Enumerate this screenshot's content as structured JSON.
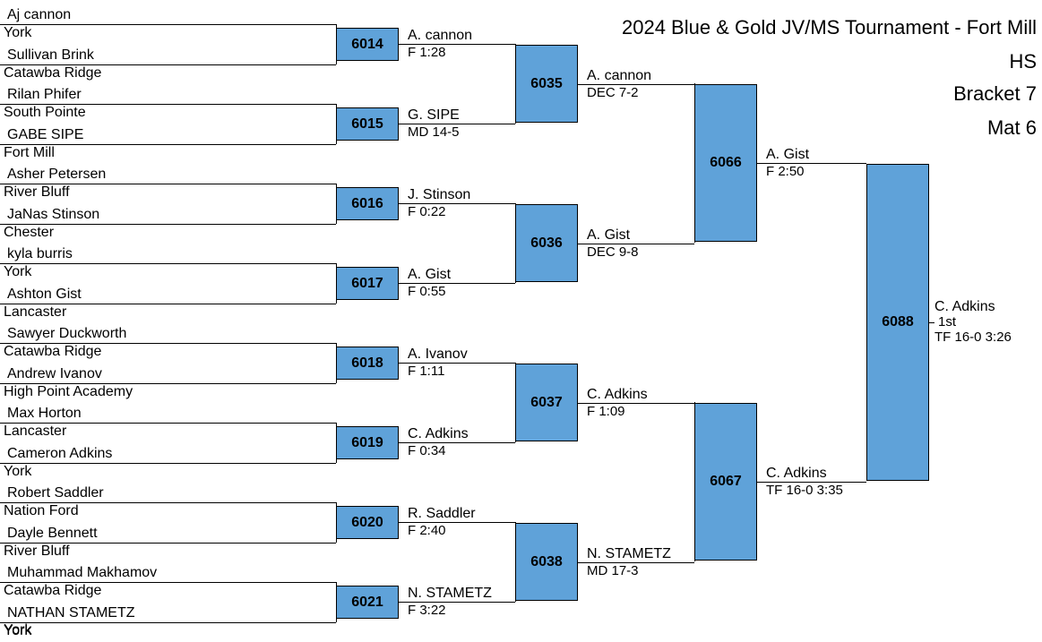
{
  "header": {
    "title_line1": "2024 Blue & Gold JV/MS Tournament - Fort Mill",
    "title_line2": "HS",
    "bracket": "Bracket 7",
    "mat": "Mat 6"
  },
  "wrestlers": [
    {
      "name": "Aj cannon",
      "team": "York"
    },
    {
      "name": "Sullivan Brink",
      "team": "Catawba Ridge"
    },
    {
      "name": "Rilan Phifer",
      "team": "South Pointe"
    },
    {
      "name": "GABE SIPE",
      "team": "Fort Mill"
    },
    {
      "name": "Asher Petersen",
      "team": "River Bluff"
    },
    {
      "name": "JaNas Stinson",
      "team": "Chester"
    },
    {
      "name": "kyla burris",
      "team": "York"
    },
    {
      "name": "Ashton Gist",
      "team": "Lancaster"
    },
    {
      "name": "Sawyer Duckworth",
      "team": "Catawba Ridge"
    },
    {
      "name": "Andrew Ivanov",
      "team": "High Point Academy"
    },
    {
      "name": "Max Horton",
      "team": "Lancaster"
    },
    {
      "name": "Cameron Adkins",
      "team": "York"
    },
    {
      "name": "Robert Saddler",
      "team": "Nation Ford"
    },
    {
      "name": "Dayle Bennett",
      "team": "River Bluff"
    },
    {
      "name": "Muhammad Makhamov",
      "team": "Catawba Ridge"
    },
    {
      "name": "NATHAN STAMETZ",
      "team": "York"
    }
  ],
  "round1": [
    {
      "bout": "6014",
      "winner": "A. cannon",
      "result": "F 1:28"
    },
    {
      "bout": "6015",
      "winner": "G. SIPE",
      "result": "MD 14-5"
    },
    {
      "bout": "6016",
      "winner": "J. Stinson",
      "result": "F 0:22"
    },
    {
      "bout": "6017",
      "winner": "A. Gist",
      "result": "F 0:55"
    },
    {
      "bout": "6018",
      "winner": "A. Ivanov",
      "result": "F 1:11"
    },
    {
      "bout": "6019",
      "winner": "C. Adkins",
      "result": "F 0:34"
    },
    {
      "bout": "6020",
      "winner": "R. Saddler",
      "result": "F 2:40"
    },
    {
      "bout": "6021",
      "winner": "N. STAMETZ",
      "result": "F 3:22"
    }
  ],
  "quarterfinals": [
    {
      "bout": "6035",
      "winner": "A. cannon",
      "result": "DEC 7-2"
    },
    {
      "bout": "6036",
      "winner": "A. Gist",
      "result": "DEC 9-8"
    },
    {
      "bout": "6037",
      "winner": "C. Adkins",
      "result": "F 1:09"
    },
    {
      "bout": "6038",
      "winner": "N. STAMETZ",
      "result": "MD 17-3"
    }
  ],
  "semifinals": [
    {
      "bout": "6066",
      "winner": "A. Gist",
      "result": "F 2:50"
    },
    {
      "bout": "6067",
      "winner": "C. Adkins",
      "result": "TF 16-0 3:35"
    }
  ],
  "final": {
    "bout": "6088",
    "winner": "C. Adkins",
    "place": "1st",
    "result": "TF 16-0 3:26"
  }
}
